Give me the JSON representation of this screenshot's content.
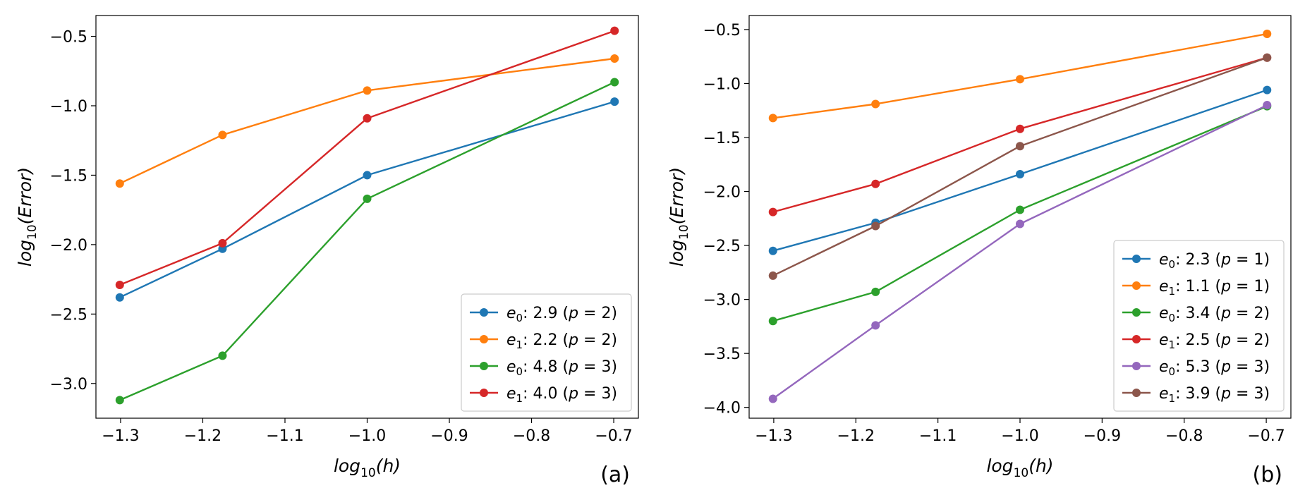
{
  "chart_data": [
    {
      "type": "line",
      "panel_label": "(a)",
      "title": "",
      "xlabel": "log10(h)",
      "ylabel": "log10(Error)",
      "xlim": [
        -1.33,
        -0.67
      ],
      "ylim": [
        -3.25,
        -0.35
      ],
      "xticks": [
        -1.3,
        -1.2,
        -1.1,
        -1.0,
        -0.9,
        -0.8,
        -0.7
      ],
      "yticks": [
        -3.0,
        -2.5,
        -2.0,
        -1.5,
        -1.0,
        -0.5
      ],
      "legend_position": "lower-right",
      "x": [
        -1.301,
        -1.176,
        -1.0,
        -0.699
      ],
      "series": [
        {
          "name": "e0",
          "slope": "2.9",
          "p": "2",
          "color": "#1f77b4",
          "values": [
            -2.38,
            -2.03,
            -1.5,
            -0.97
          ]
        },
        {
          "name": "e1",
          "slope": "2.2",
          "p": "2",
          "color": "#ff7f0e",
          "values": [
            -1.56,
            -1.21,
            -0.89,
            -0.66
          ]
        },
        {
          "name": "e0",
          "slope": "4.8",
          "p": "3",
          "color": "#2ca02c",
          "values": [
            -3.12,
            -2.8,
            -1.67,
            -0.83
          ]
        },
        {
          "name": "e1",
          "slope": "4.0",
          "p": "3",
          "color": "#d62728",
          "values": [
            -2.29,
            -1.99,
            -1.09,
            -0.46
          ]
        }
      ]
    },
    {
      "type": "line",
      "panel_label": "(b)",
      "title": "",
      "xlabel": "log10(h)",
      "ylabel": "log10(Error)",
      "xlim": [
        -1.33,
        -0.67
      ],
      "ylim": [
        -4.1,
        -0.37
      ],
      "xticks": [
        -1.3,
        -1.2,
        -1.1,
        -1.0,
        -0.9,
        -0.8,
        -0.7
      ],
      "yticks": [
        -4.0,
        -3.5,
        -3.0,
        -2.5,
        -2.0,
        -1.5,
        -1.0,
        -0.5
      ],
      "legend_position": "lower-right",
      "x": [
        -1.301,
        -1.176,
        -1.0,
        -0.699
      ],
      "series": [
        {
          "name": "e0",
          "slope": "2.3",
          "p": "1",
          "color": "#1f77b4",
          "values": [
            -2.55,
            -2.29,
            -1.84,
            -1.06
          ]
        },
        {
          "name": "e1",
          "slope": "1.1",
          "p": "1",
          "color": "#ff7f0e",
          "values": [
            -1.32,
            -1.19,
            -0.96,
            -0.54
          ]
        },
        {
          "name": "e0",
          "slope": "3.4",
          "p": "2",
          "color": "#2ca02c",
          "values": [
            -3.2,
            -2.93,
            -2.17,
            -1.21
          ]
        },
        {
          "name": "e1",
          "slope": "2.5",
          "p": "2",
          "color": "#d62728",
          "values": [
            -2.19,
            -1.93,
            -1.42,
            -0.76
          ]
        },
        {
          "name": "e0",
          "slope": "5.3",
          "p": "3",
          "color": "#9467bd",
          "values": [
            -3.92,
            -3.24,
            -2.3,
            -1.2
          ]
        },
        {
          "name": "e1",
          "slope": "3.9",
          "p": "3",
          "color": "#8c564b",
          "values": [
            -2.78,
            -2.32,
            -1.58,
            -0.76
          ]
        }
      ]
    }
  ]
}
